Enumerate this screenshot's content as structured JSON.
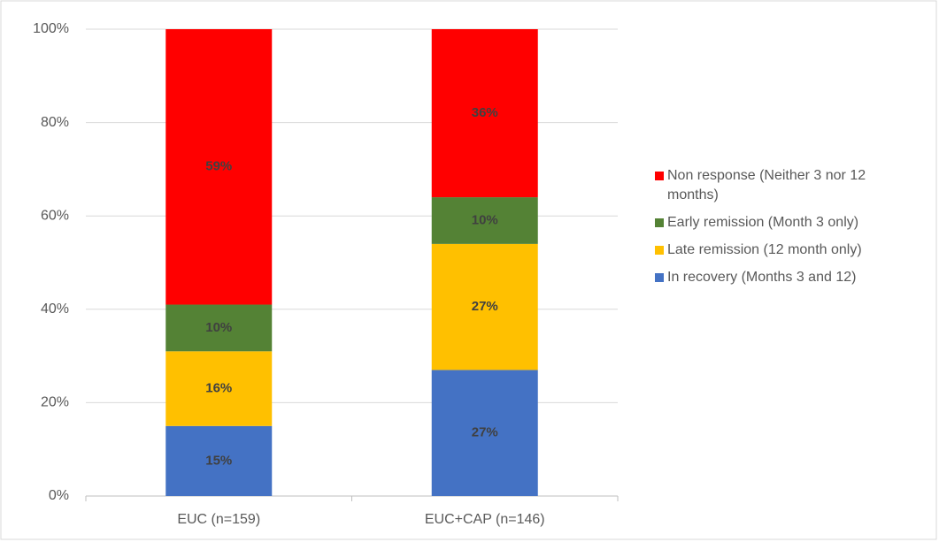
{
  "chart_data": {
    "type": "stacked-bar",
    "categories": [
      "EUC (n=159)",
      "EUC+CAP (n=146)"
    ],
    "series": [
      {
        "name": "In recovery (Months 3 and 12)",
        "color": "#4472c4",
        "values": [
          15,
          27
        ],
        "value_labels": [
          "15%",
          "27%"
        ]
      },
      {
        "name": "Late remission (12 month only)",
        "color": "#ffc000",
        "values": [
          16,
          27
        ],
        "value_labels": [
          "16%",
          "27%"
        ]
      },
      {
        "name": "Early remission (Month 3 only)",
        "color": "#548235",
        "values": [
          10,
          10
        ],
        "value_labels": [
          "10%",
          "10%"
        ]
      },
      {
        "name": "Non response (Neither 3 nor 12 months)",
        "color": "#ff0000",
        "values": [
          59,
          36
        ],
        "value_labels": [
          "59%",
          "36%"
        ]
      }
    ],
    "ylim": [
      0,
      100
    ],
    "yticks": [
      {
        "value": 0,
        "label": "0%"
      },
      {
        "value": 20,
        "label": "20%"
      },
      {
        "value": 40,
        "label": "40%"
      },
      {
        "value": 60,
        "label": "60%"
      },
      {
        "value": 80,
        "label": "80%"
      },
      {
        "value": 100,
        "label": "100%"
      }
    ],
    "grid": true,
    "legend": "right"
  }
}
